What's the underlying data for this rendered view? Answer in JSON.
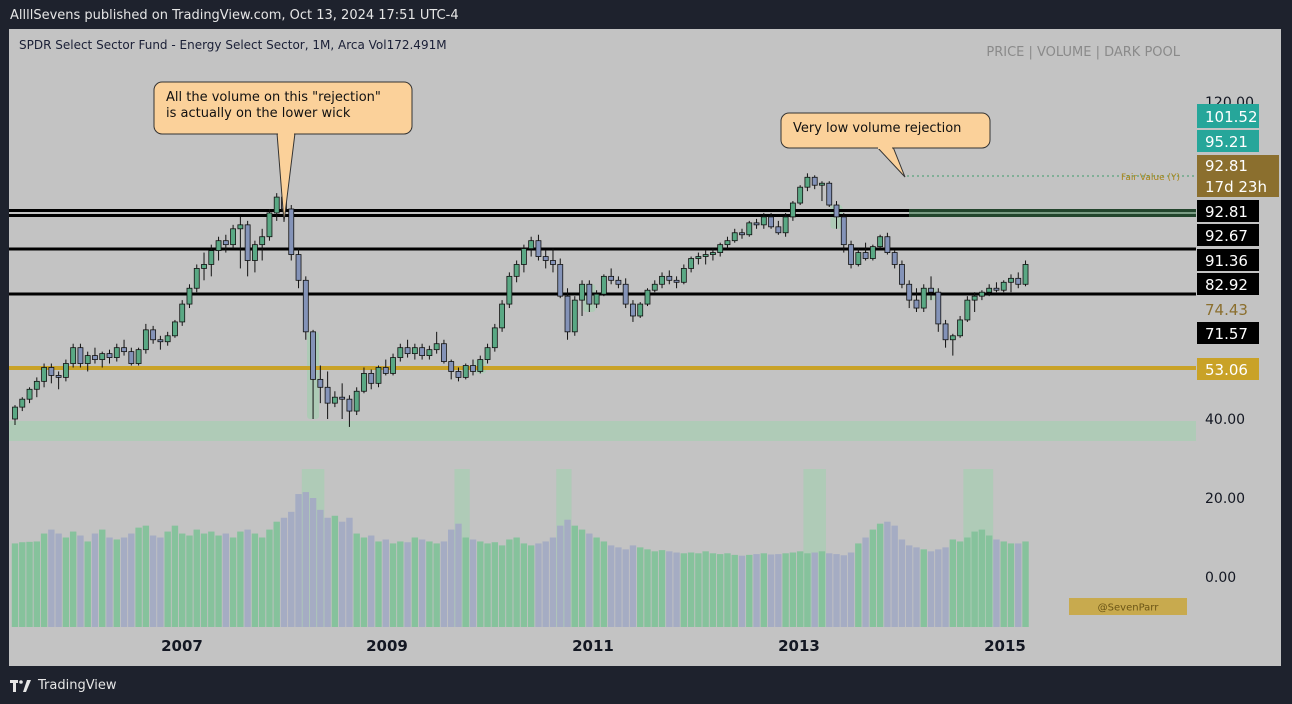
{
  "header": {
    "publish_line": "AllllSevens published on TradingView.com, Oct 13, 2024 17:51 UTC-4"
  },
  "footer": {
    "brand": "TradingView"
  },
  "chart_data": {
    "type": "candlestick",
    "symbol_line": "SPDR Select Sector Fund - Energy Select Sector, 1M, Arca",
    "volume_label": "Vol",
    "volume_value": "172.491M",
    "top_legend": [
      "PRICE",
      "VOLUME",
      "DARK POOL"
    ],
    "x_tick_labels": [
      "2007",
      "2009",
      "2011",
      "2013",
      "2015"
    ],
    "y_tick_labels": [
      "120.00",
      "40.00",
      "20.00",
      "0.00"
    ],
    "annotations": [
      {
        "text_lines": [
          "All the volume on this \"rejection\"",
          "is actually on the lower wick"
        ]
      },
      {
        "text_lines": [
          "Very low volume rejection"
        ]
      }
    ],
    "fair_value_label": "Fair Value (Y)",
    "watermark": "@SevenParr",
    "price_labels": [
      {
        "text": "101.52",
        "bg": "#26a69a",
        "fg": "#ffffff"
      },
      {
        "text": "95.21",
        "bg": "#26a69a",
        "fg": "#ffffff"
      },
      {
        "text": "92.81",
        "bg": "#8b6f2e",
        "fg": "#ffffff"
      },
      {
        "text": "17d 23h",
        "bg": "#8b6f2e",
        "fg": "#ffffff"
      },
      {
        "text": "92.81",
        "bg": "#000000",
        "fg": "#ffffff"
      },
      {
        "text": "92.67",
        "bg": "#000000",
        "fg": "#ffffff"
      },
      {
        "text": "91.36",
        "bg": "#000000",
        "fg": "#ffffff"
      },
      {
        "text": "82.92",
        "bg": "#000000",
        "fg": "#ffffff"
      },
      {
        "text": "74.43",
        "bg": "#c3c3c3",
        "fg": "#8b6f2e"
      },
      {
        "text": "71.57",
        "bg": "#000000",
        "fg": "#ffffff"
      },
      {
        "text": "53.06",
        "bg": "#c9a227",
        "fg": "#ffffff"
      }
    ],
    "colors": {
      "up": "#5aa884",
      "down": "#8493b8",
      "vol_up": "#86c29c",
      "vol_down": "#a5acc3",
      "gold": "#c9a227",
      "highlight": "#9fd1ad"
    },
    "candles": [
      [
        40.0,
        43.5,
        38.5,
        43.0
      ],
      [
        43.0,
        45.5,
        42.0,
        45.0
      ],
      [
        45.0,
        48.0,
        44.0,
        47.5
      ],
      [
        47.5,
        50.5,
        45.5,
        49.5
      ],
      [
        49.5,
        54.0,
        48.0,
        53.0
      ],
      [
        53.0,
        54.0,
        49.0,
        51.0
      ],
      [
        51.0,
        52.0,
        47.5,
        50.5
      ],
      [
        50.5,
        55.0,
        49.5,
        54.0
      ],
      [
        54.0,
        59.0,
        53.0,
        58.0
      ],
      [
        58.0,
        59.0,
        53.0,
        54.0
      ],
      [
        54.0,
        57.0,
        52.0,
        56.0
      ],
      [
        56.0,
        58.0,
        54.0,
        55.0
      ],
      [
        55.0,
        57.0,
        53.0,
        56.5
      ],
      [
        56.5,
        57.5,
        54.0,
        55.5
      ],
      [
        55.5,
        59.0,
        54.5,
        58.0
      ],
      [
        58.0,
        60.0,
        56.0,
        57.0
      ],
      [
        57.0,
        58.0,
        53.5,
        54.0
      ],
      [
        54.0,
        58.0,
        53.5,
        57.5
      ],
      [
        57.5,
        64.0,
        56.5,
        62.5
      ],
      [
        62.5,
        63.5,
        59.0,
        60.0
      ],
      [
        60.0,
        61.0,
        57.5,
        59.5
      ],
      [
        59.5,
        62.0,
        58.5,
        61.0
      ],
      [
        61.0,
        65.0,
        60.5,
        64.5
      ],
      [
        64.5,
        70.0,
        63.5,
        69.0
      ],
      [
        69.0,
        74.0,
        68.0,
        73.0
      ],
      [
        73.0,
        79.0,
        72.0,
        78.0
      ],
      [
        78.0,
        82.0,
        75.0,
        79.0
      ],
      [
        79.0,
        84.0,
        76.0,
        82.5
      ],
      [
        82.5,
        86.0,
        80.0,
        85.0
      ],
      [
        85.0,
        86.5,
        82.0,
        84.0
      ],
      [
        84.0,
        89.0,
        83.0,
        88.0
      ],
      [
        88.0,
        91.0,
        78.0,
        89.0
      ],
      [
        89.0,
        90.0,
        76.0,
        80.0
      ],
      [
        80.0,
        85.0,
        77.0,
        84.0
      ],
      [
        84.0,
        88.0,
        80.0,
        86.0
      ],
      [
        86.0,
        93.0,
        85.0,
        92.0
      ],
      [
        92.0,
        97.0,
        90.0,
        96.0
      ],
      [
        96.0,
        97.5,
        92.0,
        93.0
      ],
      [
        93.0,
        94.0,
        80.0,
        81.5
      ],
      [
        81.5,
        83.0,
        73.0,
        75.0
      ],
      [
        75.0,
        76.0,
        60.0,
        62.0
      ],
      [
        62.0,
        62.5,
        40.0,
        50.0
      ],
      [
        50.0,
        53.5,
        44.0,
        48.0
      ],
      [
        48.0,
        52.0,
        40.0,
        44.0
      ],
      [
        44.0,
        47.0,
        43.0,
        45.5
      ],
      [
        45.5,
        49.0,
        40.0,
        45.0
      ],
      [
        45.0,
        46.0,
        38.0,
        42.0
      ],
      [
        42.0,
        48.0,
        41.0,
        47.0
      ],
      [
        47.0,
        53.0,
        46.5,
        51.5
      ],
      [
        51.5,
        52.5,
        47.5,
        49.0
      ],
      [
        49.0,
        53.5,
        48.0,
        53.0
      ],
      [
        53.0,
        55.0,
        51.0,
        51.5
      ],
      [
        51.5,
        56.5,
        51.0,
        55.5
      ],
      [
        55.5,
        59.0,
        54.5,
        58.0
      ],
      [
        58.0,
        60.0,
        55.5,
        56.5
      ],
      [
        56.5,
        59.0,
        55.0,
        58.0
      ],
      [
        58.0,
        59.0,
        55.0,
        56.0
      ],
      [
        56.0,
        58.5,
        55.0,
        57.5
      ],
      [
        57.5,
        62.0,
        56.5,
        59.0
      ],
      [
        59.0,
        60.0,
        54.0,
        54.5
      ],
      [
        54.5,
        55.0,
        50.0,
        52.0
      ],
      [
        52.0,
        53.0,
        49.5,
        50.5
      ],
      [
        50.5,
        54.0,
        50.0,
        53.5
      ],
      [
        53.5,
        55.0,
        51.0,
        52.0
      ],
      [
        52.0,
        56.0,
        51.5,
        55.0
      ],
      [
        55.0,
        59.0,
        54.0,
        58.0
      ],
      [
        58.0,
        64.0,
        57.0,
        63.0
      ],
      [
        63.0,
        70.0,
        62.0,
        69.0
      ],
      [
        69.0,
        77.0,
        68.0,
        76.0
      ],
      [
        76.0,
        80.0,
        74.5,
        79.0
      ],
      [
        79.0,
        84.0,
        77.0,
        83.0
      ],
      [
        83.0,
        86.0,
        81.0,
        85.0
      ],
      [
        85.0,
        86.5,
        80.0,
        81.0
      ],
      [
        81.0,
        82.5,
        78.0,
        80.0
      ],
      [
        80.0,
        83.0,
        77.0,
        79.0
      ],
      [
        79.0,
        80.5,
        70.5,
        71.0
      ],
      [
        71.0,
        73.0,
        60.0,
        62.0
      ],
      [
        62.0,
        71.0,
        61.0,
        70.0
      ],
      [
        70.0,
        75.0,
        66.0,
        74.0
      ],
      [
        74.0,
        75.0,
        67.0,
        69.0
      ],
      [
        69.0,
        72.5,
        68.0,
        71.5
      ],
      [
        71.5,
        76.5,
        71.0,
        76.0
      ],
      [
        76.0,
        78.0,
        74.0,
        75.0
      ],
      [
        75.0,
        76.0,
        73.0,
        74.0
      ],
      [
        74.0,
        75.5,
        68.0,
        69.0
      ],
      [
        69.0,
        70.0,
        64.5,
        66.0
      ],
      [
        66.0,
        69.5,
        65.5,
        69.0
      ],
      [
        69.0,
        73.0,
        68.5,
        72.5
      ],
      [
        72.5,
        75.0,
        72.0,
        74.0
      ],
      [
        74.0,
        77.0,
        73.0,
        76.0
      ],
      [
        76.0,
        77.5,
        74.0,
        75.0
      ],
      [
        75.0,
        76.0,
        73.0,
        74.5
      ],
      [
        74.5,
        79.0,
        74.0,
        78.0
      ],
      [
        78.0,
        81.0,
        77.0,
        80.5
      ],
      [
        80.5,
        82.0,
        79.0,
        81.0
      ],
      [
        81.0,
        82.5,
        79.0,
        81.5
      ],
      [
        81.5,
        83.0,
        80.0,
        82.0
      ],
      [
        82.0,
        84.5,
        81.0,
        84.0
      ],
      [
        84.0,
        86.0,
        83.0,
        85.0
      ],
      [
        85.0,
        88.0,
        84.5,
        87.0
      ],
      [
        87.0,
        88.0,
        85.5,
        86.5
      ],
      [
        86.5,
        90.0,
        86.0,
        89.5
      ],
      [
        89.5,
        90.5,
        88.0,
        89.0
      ],
      [
        89.0,
        92.0,
        88.0,
        91.0
      ],
      [
        91.0,
        92.0,
        88.0,
        88.5
      ],
      [
        88.5,
        90.0,
        86.5,
        87.0
      ],
      [
        87.0,
        92.0,
        86.0,
        91.0
      ],
      [
        91.0,
        95.0,
        90.0,
        94.5
      ],
      [
        94.5,
        99.0,
        94.0,
        98.5
      ],
      [
        98.5,
        102.0,
        97.5,
        101.0
      ],
      [
        101.0,
        101.5,
        98.0,
        99.0
      ],
      [
        99.0,
        100.0,
        95.0,
        99.5
      ],
      [
        99.5,
        100.0,
        93.5,
        94.0
      ],
      [
        94.0,
        95.0,
        88.0,
        91.0
      ],
      [
        91.0,
        92.0,
        82.0,
        84.0
      ],
      [
        84.0,
        85.0,
        78.0,
        79.0
      ],
      [
        79.0,
        83.0,
        78.5,
        82.0
      ],
      [
        82.0,
        84.5,
        80.0,
        80.5
      ],
      [
        80.5,
        84.0,
        80.0,
        83.5
      ],
      [
        83.5,
        86.5,
        83.0,
        86.0
      ],
      [
        86.0,
        87.0,
        81.5,
        82.0
      ],
      [
        82.0,
        82.5,
        78.0,
        79.0
      ],
      [
        79.0,
        80.0,
        73.0,
        74.0
      ],
      [
        74.0,
        75.0,
        68.0,
        70.0
      ],
      [
        70.0,
        73.0,
        67.0,
        68.0
      ],
      [
        68.0,
        74.0,
        67.0,
        73.0
      ],
      [
        73.0,
        76.0,
        70.0,
        72.0
      ],
      [
        72.0,
        73.0,
        62.0,
        64.0
      ],
      [
        64.0,
        65.0,
        58.0,
        60.0
      ],
      [
        60.0,
        61.5,
        56.0,
        61.0
      ],
      [
        61.0,
        66.0,
        60.5,
        65.0
      ],
      [
        65.0,
        71.0,
        64.5,
        70.0
      ],
      [
        70.0,
        72.0,
        67.0,
        71.0
      ],
      [
        71.0,
        72.5,
        70.0,
        72.0
      ],
      [
        72.0,
        74.0,
        71.0,
        73.0
      ],
      [
        73.0,
        74.5,
        72.0,
        72.5
      ],
      [
        72.5,
        75.0,
        72.0,
        74.5
      ],
      [
        74.5,
        76.5,
        72.0,
        75.5
      ],
      [
        75.5,
        77.0,
        73.0,
        74.0
      ],
      [
        74.0,
        80.0,
        73.5,
        79.0
      ]
    ],
    "volume": [
      8.5,
      8.8,
      8.9,
      9.0,
      11.0,
      12.0,
      11.0,
      10.0,
      11.5,
      10.5,
      9.0,
      11.0,
      12.0,
      10.0,
      9.5,
      10.0,
      11.0,
      12.5,
      13.0,
      10.5,
      10.0,
      11.5,
      13.0,
      11.0,
      10.5,
      12.0,
      11.0,
      11.5,
      10.5,
      11.0,
      10.0,
      11.5,
      12.0,
      11.0,
      10.0,
      12.0,
      14.0,
      15.0,
      16.5,
      21.0,
      21.5,
      20.0,
      17.0,
      15.0,
      15.5,
      14.0,
      15.0,
      11.0,
      10.0,
      10.5,
      9.0,
      9.5,
      8.5,
      9.0,
      8.8,
      10.0,
      9.5,
      9.0,
      8.5,
      9.0,
      12.0,
      13.5,
      10.0,
      9.5,
      9.0,
      8.5,
      8.8,
      8.0,
      9.5,
      10.0,
      8.5,
      8.0,
      8.5,
      9.0,
      10.0,
      13.0,
      14.5,
      13.0,
      12.0,
      11.0,
      10.0,
      9.0,
      8.0,
      7.5,
      7.0,
      8.0,
      7.5,
      7.0,
      6.5,
      6.8,
      6.5,
      6.2,
      6.0,
      6.2,
      6.0,
      6.5,
      6.0,
      5.8,
      6.0,
      5.6,
      5.4,
      5.6,
      5.8,
      6.0,
      5.7,
      5.8,
      6.0,
      6.2,
      6.5,
      6.0,
      6.2,
      6.5,
      6.0,
      5.8,
      5.5,
      6.2,
      8.5,
      10.0,
      12.0,
      13.5,
      14.0,
      13.0,
      9.5,
      8.0,
      7.5,
      7.0,
      6.5,
      7.0,
      7.5,
      9.5,
      9.0,
      10.0,
      11.5,
      12.0,
      10.5,
      9.5,
      9.0,
      8.5,
      8.5,
      9.0
    ],
    "vol_highlight_ranges": [
      [
        40,
        42
      ],
      [
        61,
        62
      ],
      [
        75,
        76
      ],
      [
        109,
        111
      ],
      [
        131,
        134
      ]
    ],
    "notes": "Price and volume scales are estimated from the pixel positions of the printed axis labels (120.00, 40.00, 20.00, 0.00)."
  }
}
